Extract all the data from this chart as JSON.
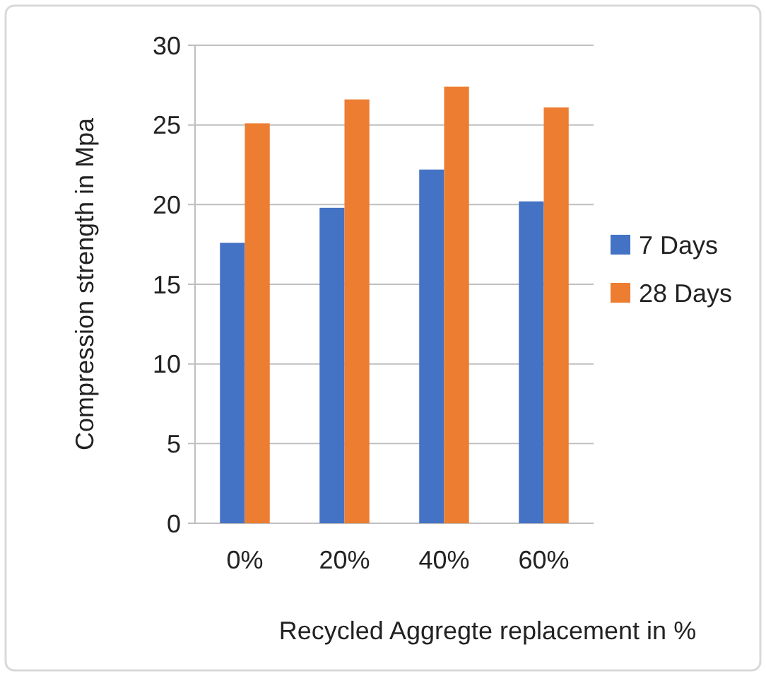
{
  "chart_data": {
    "type": "bar",
    "xlabel": "Recycled Aggregte replacement in %",
    "ylabel": "Compression  strength in Mpa",
    "categories": [
      "0%",
      "20%",
      "40%",
      "60%"
    ],
    "series": [
      {
        "name": "7 Days",
        "color": "#4472c4",
        "values": [
          17.6,
          19.8,
          22.2,
          20.2
        ]
      },
      {
        "name": "28 Days",
        "color": "#ed7d31",
        "values": [
          25.1,
          26.6,
          27.4,
          26.1
        ]
      }
    ],
    "ylim": [
      0,
      30
    ],
    "yticks": [
      0,
      5,
      10,
      15,
      20,
      25,
      30
    ],
    "grid": "y",
    "legend": "right"
  }
}
